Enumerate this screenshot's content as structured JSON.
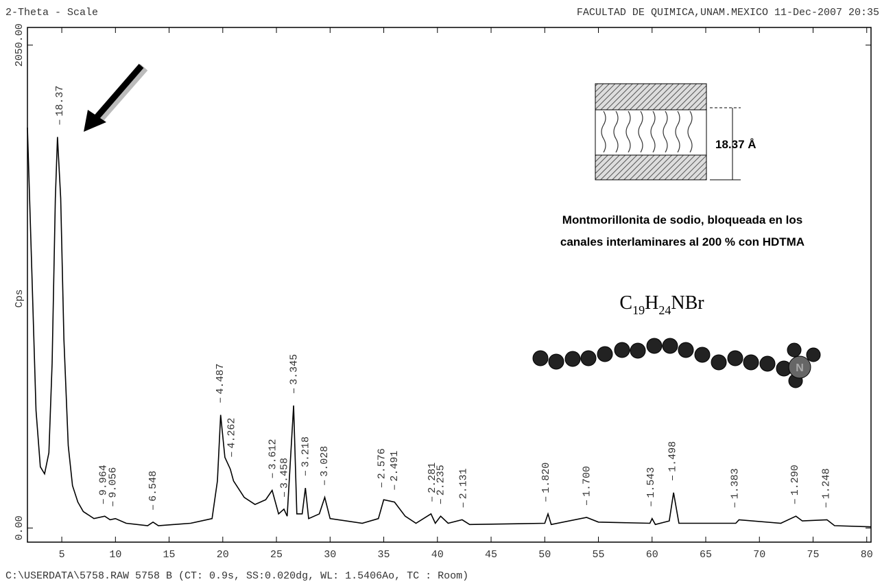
{
  "chart_data": {
    "type": "line",
    "header_left": "2-Theta - Scale",
    "header_right": "FACULTAD DE QUIMICA,UNAM.MEXICO 11-Dec-2007 20:35",
    "footer": "C:\\USERDATA\\5758.RAW 5758 B (CT:  0.9s, SS:0.020dg, WL: 1.5406Ao, TC : Room)",
    "ylabel": "Cps",
    "color": "#000000",
    "xlim": [
      1.8,
      80.4
    ],
    "ylim": [
      -60,
      2125
    ],
    "xticks": [
      5,
      10,
      15,
      20,
      25,
      30,
      35,
      40,
      45,
      50,
      55,
      60,
      65,
      70,
      75,
      80
    ],
    "yticks": [
      {
        "value": 0,
        "label": "0.00"
      },
      {
        "value": 2050,
        "label": "2050.00"
      }
    ],
    "x": [
      1.8,
      2.2,
      2.6,
      3.0,
      3.4,
      3.8,
      4.1,
      4.4,
      4.6,
      4.9,
      5.2,
      5.6,
      6.0,
      6.5,
      7,
      8,
      9,
      9.5,
      10,
      11,
      13,
      13.5,
      14,
      17,
      19,
      19.5,
      19.8,
      20.2,
      20.7,
      21,
      22,
      23,
      24,
      24.6,
      25.2,
      25.7,
      26.0,
      26.6,
      26.9,
      27.4,
      27.7,
      28,
      29,
      29.5,
      30,
      33,
      34.5,
      35,
      36,
      37,
      38,
      39.4,
      39.8,
      40.3,
      41,
      42.3,
      43,
      50,
      50.3,
      50.6,
      53.9,
      55,
      59.8,
      60,
      60.3,
      61.6,
      62,
      62.5,
      67.8,
      68.1,
      72,
      73.4,
      74,
      76.3,
      77,
      80.4
    ],
    "values": [
      1700,
      1100,
      500,
      260,
      230,
      320,
      700,
      1400,
      1660,
      1400,
      800,
      350,
      180,
      110,
      70,
      40,
      50,
      35,
      40,
      20,
      10,
      25,
      10,
      20,
      40,
      200,
      480,
      300,
      250,
      200,
      130,
      100,
      120,
      160,
      60,
      80,
      50,
      520,
      60,
      60,
      170,
      40,
      60,
      130,
      40,
      20,
      40,
      120,
      110,
      50,
      20,
      60,
      20,
      50,
      20,
      35,
      15,
      20,
      60,
      15,
      45,
      25,
      20,
      40,
      15,
      30,
      150,
      20,
      20,
      35,
      20,
      50,
      30,
      35,
      10,
      5
    ],
    "annotations": [
      {
        "x": 4.8,
        "label": "18.37"
      },
      {
        "x": 8.87,
        "label": "9.964"
      },
      {
        "x": 9.76,
        "label": "9.056"
      },
      {
        "x": 13.5,
        "label": "6.548"
      },
      {
        "x": 19.77,
        "label": "4.487"
      },
      {
        "x": 20.82,
        "label": "4.262"
      },
      {
        "x": 24.63,
        "label": "3.612"
      },
      {
        "x": 25.74,
        "label": "3.458"
      },
      {
        "x": 26.63,
        "label": "3.345"
      },
      {
        "x": 27.7,
        "label": "3.218"
      },
      {
        "x": 29.48,
        "label": "3.028"
      },
      {
        "x": 34.8,
        "label": "2.576"
      },
      {
        "x": 36.0,
        "label": "2.491"
      },
      {
        "x": 39.5,
        "label": "2.281"
      },
      {
        "x": 40.3,
        "label": "2.235"
      },
      {
        "x": 42.4,
        "label": "2.131"
      },
      {
        "x": 50.1,
        "label": "1.820"
      },
      {
        "x": 53.9,
        "label": "1.700"
      },
      {
        "x": 59.9,
        "label": "1.543"
      },
      {
        "x": 61.9,
        "label": "1.498"
      },
      {
        "x": 67.7,
        "label": "1.383"
      },
      {
        "x": 73.3,
        "label": "1.290"
      },
      {
        "x": 76.2,
        "label": "1.248"
      }
    ],
    "inset": {
      "spacing_label": "18.37 Å",
      "caption": [
        "Montmorillonita de sodio, bloqueada en los",
        "canales interlaminares al 200 % con HDTMA"
      ],
      "formula": [
        "C",
        "19",
        "H",
        "24",
        "NBr"
      ],
      "atom": "N"
    }
  }
}
